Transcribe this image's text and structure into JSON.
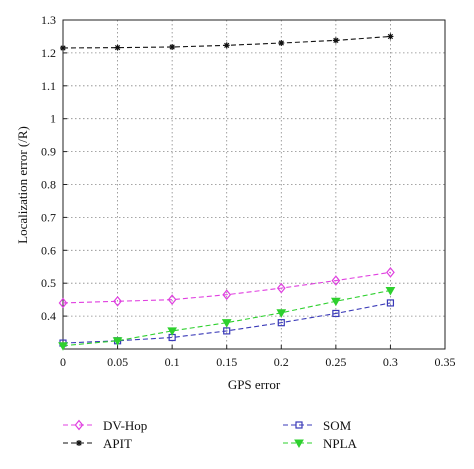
{
  "chart_data": {
    "type": "line",
    "title": "",
    "xlabel": "GPS error",
    "ylabel": "Localization error (/R)",
    "xlim": [
      0,
      0.35
    ],
    "ylim": [
      0.3,
      1.3
    ],
    "xticks": [
      "0",
      "0.05",
      "0.1",
      "0.15",
      "0.2",
      "0.25",
      "0.3",
      "0.35"
    ],
    "yticks": [
      "0.4",
      "0.5",
      "0.6",
      "0.7",
      "0.8",
      "0.9",
      "1",
      "1.1",
      "1.2",
      "1.3"
    ],
    "grid": true,
    "legend": "bottom",
    "x": [
      0,
      0.05,
      0.1,
      0.15,
      0.2,
      0.25,
      0.3
    ],
    "series": [
      {
        "name": "DV-Hop",
        "color": "#e040e0",
        "marker": "diamond",
        "values": [
          0.44,
          0.445,
          0.45,
          0.465,
          0.485,
          0.508,
          0.533
        ]
      },
      {
        "name": "APIT",
        "color": "#111111",
        "marker": "star",
        "values": [
          1.215,
          1.216,
          1.218,
          1.223,
          1.23,
          1.238,
          1.25
        ]
      },
      {
        "name": "SOM",
        "color": "#3a3ab8",
        "marker": "square",
        "values": [
          0.318,
          0.325,
          0.335,
          0.355,
          0.38,
          0.408,
          0.44
        ]
      },
      {
        "name": "NPLA",
        "color": "#2ed02e",
        "marker": "triangle-down",
        "values": [
          0.31,
          0.325,
          0.355,
          0.38,
          0.41,
          0.445,
          0.478
        ]
      }
    ]
  }
}
